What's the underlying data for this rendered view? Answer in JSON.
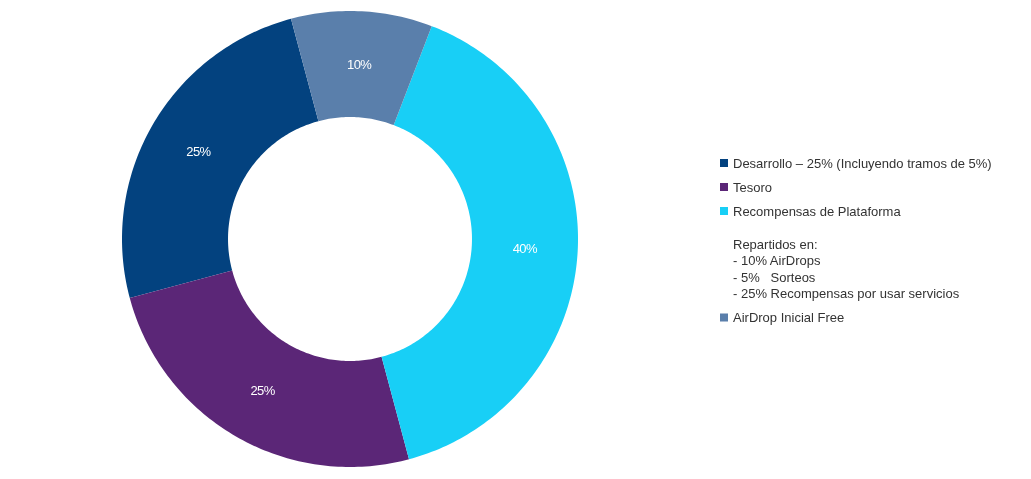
{
  "chart_data": {
    "type": "donut",
    "categories": [
      "Desarrollo – 25% (Incluyendo tramos de 5%)",
      "Tesoro",
      "Recompensas de Plataforma\n\nRepartidos en:\n- 10% AirDrops\n- 5%   Sorteos\n- 25% Recompensas por usar servicios",
      "AirDrop Inicial Free"
    ],
    "values": [
      25,
      25,
      40,
      10
    ],
    "colors": [
      "#03427f",
      "#5b2677",
      "#18cff6",
      "#5a7fab"
    ],
    "value_labels": [
      "25%",
      "25%",
      "40%",
      "10%"
    ],
    "legend": "right"
  }
}
